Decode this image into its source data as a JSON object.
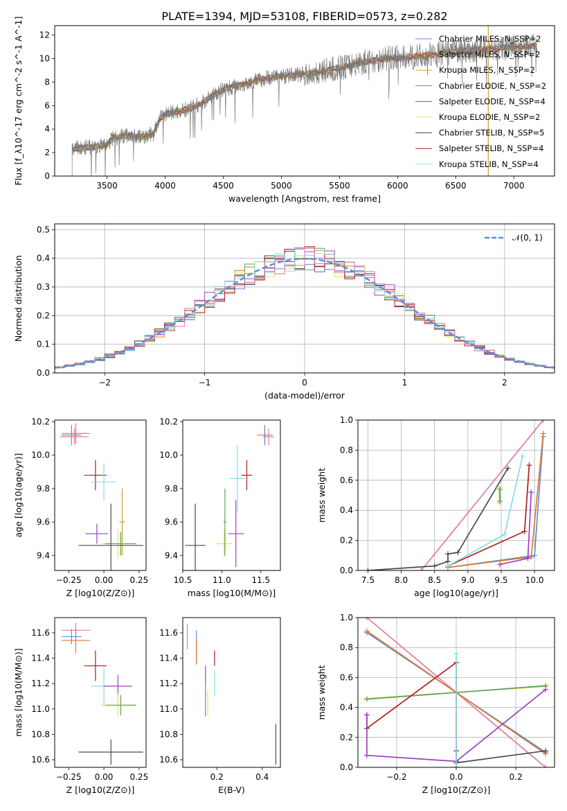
{
  "title": "PLATE=1394, MJD=53108, FIBERID=0573, z=0.282",
  "colors": {
    "chabrier_miles": "#5b8fd6",
    "salpeter_miles": "#e0782c",
    "kroupa_miles": "#c9a227",
    "chabrier_elodie": "#5aa05a",
    "salpeter_elodie": "#9b3fc0",
    "kroupa_elodie": "#dbe85a",
    "chabrier_stelib": "#4a4a4a",
    "salpeter_stelib": "#b01c1c",
    "kroupa_stelib": "#86dde6",
    "extra": "#e07aa8",
    "norm": "#5b8fd6",
    "grid": "#b0b0b0"
  },
  "chart_data": [
    {
      "id": "spectrum",
      "type": "line",
      "xlabel": "wavelength [Angstrom, rest frame]",
      "ylabel": "Flux [f_λ10^-17 erg cm^-2 s^-1 A^-1]",
      "xlim": [
        3050,
        7350
      ],
      "ylim": [
        0,
        12.8
      ],
      "xticks": [
        3500,
        4000,
        4500,
        5000,
        5500,
        6000,
        6500,
        7000
      ],
      "yticks": [
        0,
        2,
        4,
        6,
        8,
        10,
        12
      ],
      "grid": false,
      "legend_position": "right",
      "legend": [
        {
          "label": "Chabrier MILES, N_SSP=2",
          "color": "#5b8fd6"
        },
        {
          "label": "Salpeter MILES, N_SSP=2",
          "color": "#e0782c"
        },
        {
          "label": "Kroupa MILES, N_SSP=2",
          "color": "#c9a227"
        },
        {
          "label": "Chabrier ELODIE, N_SSP=2",
          "color": "#5aa05a"
        },
        {
          "label": "Salpeter ELODIE, N_SSP=4",
          "color": "#9b3fc0"
        },
        {
          "label": "Kroupa ELODIE, N_SSP=2",
          "color": "#dbe85a"
        },
        {
          "label": "Chabrier STELIB, N_SSP=5",
          "color": "#4a4a4a"
        },
        {
          "label": "Salpeter STELIB, N_SSP=4",
          "color": "#b01c1c"
        },
        {
          "label": "Kroupa STELIB, N_SSP=4",
          "color": "#86dde6"
        }
      ],
      "continuum": [
        [
          3200,
          2.3
        ],
        [
          3400,
          2.5
        ],
        [
          3500,
          2.6
        ],
        [
          3550,
          3.3
        ],
        [
          3700,
          3.5
        ],
        [
          3800,
          3.3
        ],
        [
          3900,
          3.6
        ],
        [
          3950,
          4.8
        ],
        [
          4000,
          5.3
        ],
        [
          4200,
          5.7
        ],
        [
          4300,
          6.1
        ],
        [
          4400,
          6.8
        ],
        [
          4500,
          7.4
        ],
        [
          4700,
          7.9
        ],
        [
          4900,
          8.4
        ],
        [
          5100,
          8.6
        ],
        [
          5300,
          8.8
        ],
        [
          5500,
          9.2
        ],
        [
          5700,
          9.7
        ],
        [
          5900,
          10.0
        ],
        [
          6100,
          10.1
        ],
        [
          6300,
          10.3
        ],
        [
          6500,
          10.6
        ],
        [
          6700,
          10.8
        ],
        [
          6900,
          10.9
        ],
        [
          7100,
          11.0
        ],
        [
          7200,
          11.1
        ]
      ]
    },
    {
      "id": "residuals",
      "type": "histogram",
      "xlabel": "(data-model)/error",
      "ylabel": "Normed distribution",
      "xlim": [
        -2.5,
        2.5
      ],
      "ylim": [
        0,
        0.52
      ],
      "xticks": [
        -2,
        -1,
        0,
        1,
        2
      ],
      "xtick_labels": [
        "−2",
        "−1",
        "0",
        "1",
        "2"
      ],
      "yticks": [
        0.0,
        0.1,
        0.2,
        0.3,
        0.4,
        0.5
      ],
      "ytick_labels": [
        "0.0",
        "0.1",
        "0.2",
        "0.3",
        "0.4",
        "0.5"
      ],
      "grid": true,
      "bin_width": 0.1,
      "legend": [
        {
          "label": "𝒩(0, 1)",
          "color": "#5b8fd6"
        }
      ]
    },
    {
      "id": "age_vs_Z",
      "type": "scatter",
      "xlabel": "Z [log10(Z/Z⊙)]",
      "ylabel": "age [log10(age/yr)]",
      "xlim": [
        -0.35,
        0.3
      ],
      "ylim": [
        9.31,
        10.21
      ],
      "xticks": [
        -0.25,
        0.0,
        0.25
      ],
      "xtick_labels": [
        "−0.25",
        "0.00",
        "0.25"
      ],
      "yticks": [
        9.4,
        9.6,
        9.8,
        10.0,
        10.2
      ],
      "ytick_labels": [
        "9.4",
        "9.6",
        "9.8",
        "10.0",
        "10.2"
      ],
      "grid": false,
      "points": [
        {
          "x": -0.23,
          "y": 10.12,
          "xerr": 0.07,
          "yerr": 0.06,
          "color": "#5b8fd6"
        },
        {
          "x": -0.2,
          "y": 10.13,
          "xerr": 0.1,
          "yerr": 0.06,
          "color": "#e0782c"
        },
        {
          "x": -0.21,
          "y": 10.11,
          "xerr": 0.1,
          "yerr": 0.05,
          "color": "#e07aa8"
        },
        {
          "x": -0.06,
          "y": 9.88,
          "xerr": 0.08,
          "yerr": 0.09,
          "color": "#b01c1c"
        },
        {
          "x": 0.0,
          "y": 9.84,
          "xerr": 0.09,
          "yerr": 0.11,
          "color": "#86dde6"
        },
        {
          "x": -0.05,
          "y": 9.53,
          "xerr": 0.08,
          "yerr": 0.06,
          "color": "#9b3fc0"
        },
        {
          "x": 0.1,
          "y": 9.47,
          "xerr": 0.12,
          "yerr": 0.09,
          "color": "#dbe85a"
        },
        {
          "x": 0.12,
          "y": 9.47,
          "xerr": 0.11,
          "yerr": 0.07,
          "color": "#5aa05a"
        },
        {
          "x": 0.13,
          "y": 9.6,
          "xerr": 0.02,
          "yerr": 0.2,
          "color": "#c9a227"
        },
        {
          "x": 0.05,
          "y": 9.46,
          "xerr": 0.23,
          "yerr": 0.25,
          "color": "#4a4a4a"
        }
      ]
    },
    {
      "id": "age_vs_mass",
      "type": "scatter",
      "xlabel": "mass [log10(M/M⊙)]",
      "ylabel": "",
      "xlim": [
        10.5,
        11.75
      ],
      "ylim": [
        9.31,
        10.21
      ],
      "xticks": [
        10.5,
        11.0,
        11.5
      ],
      "xtick_labels": [
        "10.5",
        "11.0",
        "11.5"
      ],
      "yticks": [
        9.4,
        9.6,
        9.8,
        10.0,
        10.2
      ],
      "ytick_labels": [
        "9.4",
        "9.6",
        "9.8",
        "10.0",
        "10.2"
      ],
      "grid": false,
      "points": [
        {
          "x": 11.55,
          "y": 10.12,
          "xerr": 0.1,
          "yerr": 0.06,
          "color": "#e0782c"
        },
        {
          "x": 11.6,
          "y": 10.11,
          "xerr": 0.07,
          "yerr": 0.05,
          "color": "#e07aa8"
        },
        {
          "x": 11.55,
          "y": 10.12,
          "xerr": 0.02,
          "yerr": 0.06,
          "color": "#5b8fd6"
        },
        {
          "x": 11.32,
          "y": 9.88,
          "xerr": 0.07,
          "yerr": 0.09,
          "color": "#b01c1c"
        },
        {
          "x": 11.2,
          "y": 9.86,
          "xerr": 0.1,
          "yerr": 0.2,
          "color": "#86dde6"
        },
        {
          "x": 11.18,
          "y": 9.53,
          "xerr": 0.1,
          "yerr": 0.2,
          "color": "#9b3fc0"
        },
        {
          "x": 11.03,
          "y": 9.47,
          "xerr": 0.1,
          "yerr": 0.08,
          "color": "#dbe85a"
        },
        {
          "x": 11.04,
          "y": 9.6,
          "xerr": 0.02,
          "yerr": 0.2,
          "color": "#5aa05a"
        },
        {
          "x": 10.66,
          "y": 9.46,
          "xerr": 0.13,
          "yerr": 0.25,
          "color": "#4a4a4a"
        }
      ]
    },
    {
      "id": "massweight_vs_age",
      "type": "line",
      "xlabel": "age [log10(age/yr)]",
      "ylabel": "mass weight",
      "xlim": [
        7.35,
        10.3
      ],
      "ylim": [
        0,
        1
      ],
      "xticks": [
        7.5,
        8.0,
        8.5,
        9.0,
        9.5,
        10.0
      ],
      "xtick_labels": [
        "7.5",
        "8.0",
        "8.5",
        "9.0",
        "9.5",
        "10.0"
      ],
      "yticks": [
        0.0,
        0.2,
        0.4,
        0.6,
        0.8,
        1.0
      ],
      "ytick_labels": [
        "0.0",
        "0.2",
        "0.4",
        "0.6",
        "0.8",
        "1.0"
      ],
      "grid": true,
      "series": [
        {
          "color": "#e07aa8",
          "x": [
            8.3,
            10.13
          ],
          "y": [
            0.0,
            1.0
          ]
        },
        {
          "color": "#4a4a4a",
          "x": [
            7.5,
            8.5,
            8.7,
            8.7,
            8.85,
            9.6
          ],
          "y": [
            0.0,
            0.03,
            0.06,
            0.11,
            0.12,
            0.68
          ]
        },
        {
          "color": "#5b8fd6",
          "x": [
            8.7,
            10.0,
            10.13
          ],
          "y": [
            0.02,
            0.1,
            0.89
          ]
        },
        {
          "color": "#e0782c",
          "x": [
            8.7,
            9.95,
            10.13
          ],
          "y": [
            0.02,
            0.09,
            0.91
          ]
        },
        {
          "color": "#9b3fc0",
          "x": [
            9.48,
            9.9,
            9.95
          ],
          "y": [
            0.04,
            0.08,
            0.52
          ]
        },
        {
          "color": "#b01c1c",
          "x": [
            8.7,
            9.85,
            9.92
          ],
          "y": [
            0.03,
            0.26,
            0.7
          ]
        },
        {
          "color": "#86dde6",
          "x": [
            8.7,
            9.55,
            9.82
          ],
          "y": [
            0.03,
            0.24,
            0.76
          ]
        },
        {
          "color": "#dbe85a",
          "x": [
            9.47,
            9.47
          ],
          "y": [
            0.45,
            0.55
          ]
        },
        {
          "color": "#5aa05a",
          "x": [
            9.48,
            9.48
          ],
          "y": [
            0.46,
            0.54
          ]
        }
      ]
    },
    {
      "id": "mass_vs_Z",
      "type": "scatter",
      "xlabel": "Z [log10(Z/Z⊙)]",
      "ylabel": "mass [log10(M/M⊙)]",
      "xlim": [
        -0.35,
        0.3
      ],
      "ylim": [
        10.54,
        11.72
      ],
      "xticks": [
        -0.25,
        0.0,
        0.25
      ],
      "xtick_labels": [
        "−0.25",
        "0.00",
        "0.25"
      ],
      "yticks": [
        10.6,
        10.8,
        11.0,
        11.2,
        11.4,
        11.6
      ],
      "ytick_labels": [
        "10.6",
        "10.8",
        "11.0",
        "11.2",
        "11.4",
        "11.6"
      ],
      "grid": false,
      "points": [
        {
          "x": -0.2,
          "y": 11.62,
          "xerr": 0.1,
          "yerr": 0.06,
          "color": "#e07aa8"
        },
        {
          "x": -0.23,
          "y": 11.57,
          "xerr": 0.07,
          "yerr": 0.06,
          "color": "#5b8fd6"
        },
        {
          "x": -0.2,
          "y": 11.54,
          "xerr": 0.1,
          "yerr": 0.1,
          "color": "#e0782c"
        },
        {
          "x": -0.06,
          "y": 11.34,
          "xerr": 0.08,
          "yerr": 0.12,
          "color": "#b01c1c"
        },
        {
          "x": 0.0,
          "y": 11.18,
          "xerr": 0.09,
          "yerr": 0.15,
          "color": "#86dde6"
        },
        {
          "x": 0.1,
          "y": 11.18,
          "xerr": 0.1,
          "yerr": 0.09,
          "color": "#9b3fc0"
        },
        {
          "x": 0.1,
          "y": 11.03,
          "xerr": 0.12,
          "yerr": 0.09,
          "color": "#dbe85a"
        },
        {
          "x": 0.12,
          "y": 11.03,
          "xerr": 0.11,
          "yerr": 0.08,
          "color": "#5aa05a"
        },
        {
          "x": 0.05,
          "y": 10.66,
          "xerr": 0.23,
          "yerr": 0.1,
          "color": "#4a4a4a"
        }
      ]
    },
    {
      "id": "mass_vs_ebv",
      "type": "scatter",
      "xlabel": "E(B-V)",
      "ylabel": "",
      "xlim": [
        0.05,
        0.48
      ],
      "ylim": [
        10.54,
        11.72
      ],
      "xticks": [
        0.2,
        0.4
      ],
      "xtick_labels": [
        "0.2",
        "0.4"
      ],
      "yticks": [
        10.6,
        10.8,
        11.0,
        11.2,
        11.4,
        11.6
      ],
      "ytick_labels": [
        "10.6",
        "10.8",
        "11.0",
        "11.2",
        "11.4",
        "11.6"
      ],
      "grid": false,
      "points": [
        {
          "x": 0.07,
          "y": 11.57,
          "xerr": 0.0,
          "yerr": 0.1,
          "color": "#e07aa8"
        },
        {
          "x": 0.11,
          "y": 11.5,
          "xerr": 0.0,
          "yerr": 0.12,
          "color": "#5b8fd6"
        },
        {
          "x": 0.11,
          "y": 11.45,
          "xerr": 0.0,
          "yerr": 0.1,
          "color": "#e0782c"
        },
        {
          "x": 0.19,
          "y": 11.4,
          "xerr": 0.0,
          "yerr": 0.06,
          "color": "#b01c1c"
        },
        {
          "x": 0.19,
          "y": 11.2,
          "xerr": 0.0,
          "yerr": 0.1,
          "color": "#86dde6"
        },
        {
          "x": 0.15,
          "y": 11.27,
          "xerr": 0.0,
          "yerr": 0.07,
          "color": "#9b3fc0"
        },
        {
          "x": 0.15,
          "y": 11.08,
          "xerr": 0.0,
          "yerr": 0.14,
          "color": "#5aa05a"
        },
        {
          "x": 0.16,
          "y": 11.05,
          "xerr": 0.0,
          "yerr": 0.1,
          "color": "#dbe85a"
        },
        {
          "x": 0.46,
          "y": 10.72,
          "xerr": 0.0,
          "yerr": 0.16,
          "color": "#4a4a4a"
        }
      ]
    },
    {
      "id": "massweight_vs_Z",
      "type": "line",
      "xlabel": "Z [log10(Z/Z⊙)]",
      "ylabel": "mass weight",
      "xlim": [
        -0.33,
        0.33
      ],
      "ylim": [
        0,
        1
      ],
      "xticks": [
        -0.2,
        0.0,
        0.2
      ],
      "xtick_labels": [
        "−0.2",
        "0.0",
        "0.2"
      ],
      "yticks": [
        0.0,
        0.2,
        0.4,
        0.6,
        0.8,
        1.0
      ],
      "ytick_labels": [
        "0.0",
        "0.2",
        "0.4",
        "0.6",
        "0.8",
        "1.0"
      ],
      "grid": true,
      "series": [
        {
          "color": "#e07aa8",
          "x": [
            -0.3,
            0.3
          ],
          "y": [
            1.0,
            0.0
          ]
        },
        {
          "color": "#5b8fd6",
          "x": [
            -0.3,
            0.3
          ],
          "y": [
            0.9,
            0.1
          ]
        },
        {
          "color": "#e0782c",
          "x": [
            -0.3,
            0.3
          ],
          "y": [
            0.91,
            0.09
          ]
        },
        {
          "color": "#dbe85a",
          "x": [
            -0.3,
            0.3
          ],
          "y": [
            0.46,
            0.54
          ]
        },
        {
          "color": "#5aa05a",
          "x": [
            -0.3,
            0.3
          ],
          "y": [
            0.455,
            0.545
          ]
        },
        {
          "color": "#b01c1c",
          "x": [
            -0.3,
            -0.3,
            0.0,
            0.0
          ],
          "y": [
            0.35,
            0.26,
            0.7,
            0.0
          ]
        },
        {
          "color": "#9b3fc0",
          "x": [
            -0.3,
            -0.3,
            0.0,
            0.3
          ],
          "y": [
            0.35,
            0.08,
            0.04,
            0.52
          ]
        },
        {
          "color": "#4a4a4a",
          "x": [
            0.0,
            0.0,
            0.3
          ],
          "y": [
            0.11,
            0.03,
            0.11
          ]
        },
        {
          "color": "#86dde6",
          "x": [
            0.0,
            0.0
          ],
          "y": [
            0.76,
            0.0
          ]
        }
      ]
    }
  ]
}
